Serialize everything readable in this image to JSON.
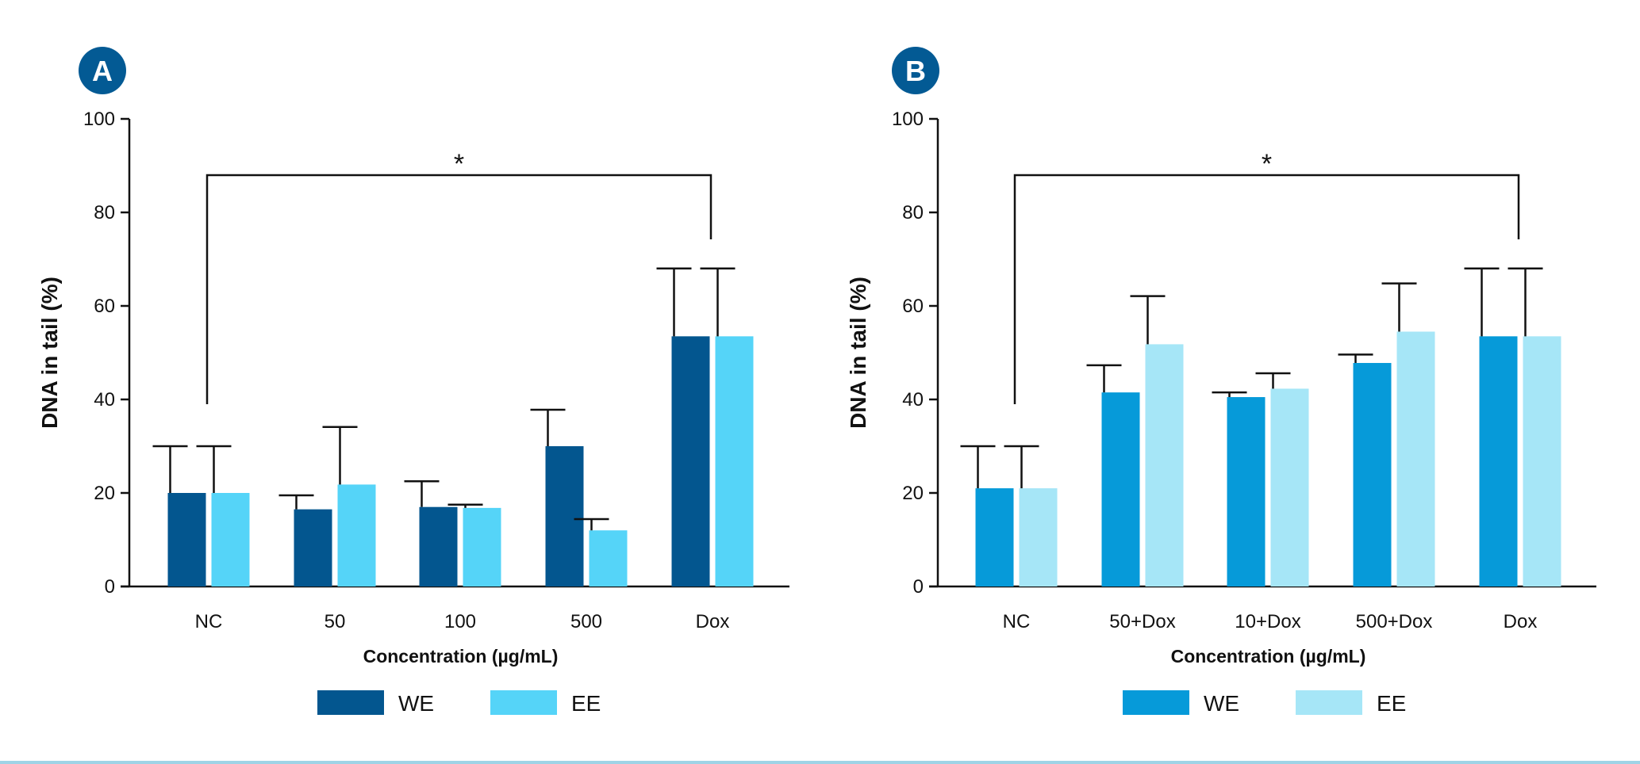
{
  "colors": {
    "A_WE": "#03568f",
    "A_EE": "#55d4f8",
    "B_WE": "#069ad9",
    "B_EE": "#a6e6f7",
    "badge": "#035a94",
    "rule": "#9fd3e6"
  },
  "chart_data": [
    {
      "panel": "A",
      "type": "bar",
      "title": "",
      "xlabel": "Concentration (µg/mL)",
      "ylabel": "DNA in tail (%)",
      "ylim": [
        0,
        100
      ],
      "yticks": [
        0,
        20,
        40,
        60,
        80,
        100
      ],
      "categories": [
        "NC",
        "50",
        "100",
        "500",
        "Dox"
      ],
      "series": [
        {
          "name": "WE",
          "values": [
            20,
            16.5,
            17,
            30,
            53.5
          ],
          "errors": [
            10,
            3,
            5.5,
            7.8,
            14.5
          ]
        },
        {
          "name": "EE",
          "values": [
            20,
            21.8,
            16.8,
            12,
            53.5
          ],
          "errors": [
            10,
            12.3,
            0.7,
            2.4,
            14.5
          ]
        }
      ],
      "significance": {
        "from": "NC",
        "to": "Dox",
        "label": "*"
      },
      "legend_position": "bottom-center"
    },
    {
      "panel": "B",
      "type": "bar",
      "title": "",
      "xlabel": "Concentration (µg/mL)",
      "ylabel": "DNA in tail (%)",
      "ylim": [
        0,
        100
      ],
      "yticks": [
        0,
        20,
        40,
        60,
        80,
        100
      ],
      "categories": [
        "NC",
        "50+Dox",
        "10+Dox",
        "500+Dox",
        "Dox"
      ],
      "series": [
        {
          "name": "WE",
          "values": [
            21,
            41.5,
            40.5,
            47.8,
            53.5
          ],
          "errors": [
            9,
            5.8,
            1,
            1.8,
            14.5
          ]
        },
        {
          "name": "EE",
          "values": [
            21,
            51.8,
            42.3,
            54.5,
            53.5
          ],
          "errors": [
            9,
            10.3,
            3.3,
            10.3,
            14.5
          ]
        }
      ],
      "significance": {
        "from": "NC",
        "to": "Dox",
        "label": "*"
      },
      "legend_position": "bottom-center"
    }
  ]
}
